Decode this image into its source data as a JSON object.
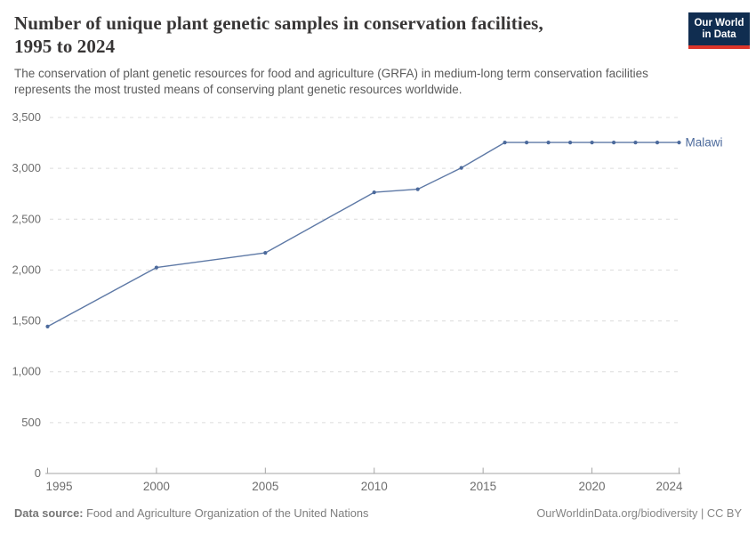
{
  "header": {
    "title_lines": [
      "Number of unique plant genetic samples in conservation facilities,",
      "1995 to 2024"
    ],
    "subtitle": "The conservation of plant genetic resources for food and agriculture (GRFA) in medium-long term conservation facilities represents the most trusted means of conserving plant genetic resources worldwide.",
    "logo": {
      "line1": "Our World",
      "line2": "in Data",
      "bg_color": "#102d50",
      "accent_color": "#dc352a"
    }
  },
  "chart_data": {
    "type": "line",
    "title": "Number of unique plant genetic samples in conservation facilities, 1995 to 2024",
    "x": [
      1995,
      2000,
      2005,
      2010,
      2012,
      2014,
      2016,
      2017,
      2018,
      2019,
      2020,
      2021,
      2022,
      2023,
      2024
    ],
    "series": [
      {
        "name": "Malawi",
        "color": "#4c6a9c",
        "values": [
          1440,
          2020,
          2165,
          2760,
          2790,
          3000,
          3250,
          3250,
          3250,
          3250,
          3250,
          3250,
          3250,
          3250,
          3250
        ]
      }
    ],
    "xlabel": "",
    "ylabel": "",
    "xlim": [
      1995,
      2024
    ],
    "ylim": [
      0,
      3500
    ],
    "yticks": [
      0,
      500,
      1000,
      1500,
      2000,
      2500,
      3000,
      3500
    ],
    "ytick_labels": [
      "0",
      "500",
      "1,000",
      "1,500",
      "2,000",
      "2,500",
      "3,000",
      "3,500"
    ],
    "xticks": [
      1995,
      2000,
      2005,
      2010,
      2015,
      2020,
      2024
    ],
    "xtick_labels": [
      "1995",
      "2000",
      "2005",
      "2010",
      "2015",
      "2020",
      "2024"
    ],
    "grid": "horizontal-dashed",
    "legend_position": "end-of-line",
    "grid_color": "#dcdcdc",
    "axis_color": "#a5a5a5"
  },
  "footer": {
    "source_label": "Data source:",
    "source_text": " Food and Agriculture Organization of the United Nations",
    "link": "OurWorldinData.org/biodiversity | CC BY"
  }
}
